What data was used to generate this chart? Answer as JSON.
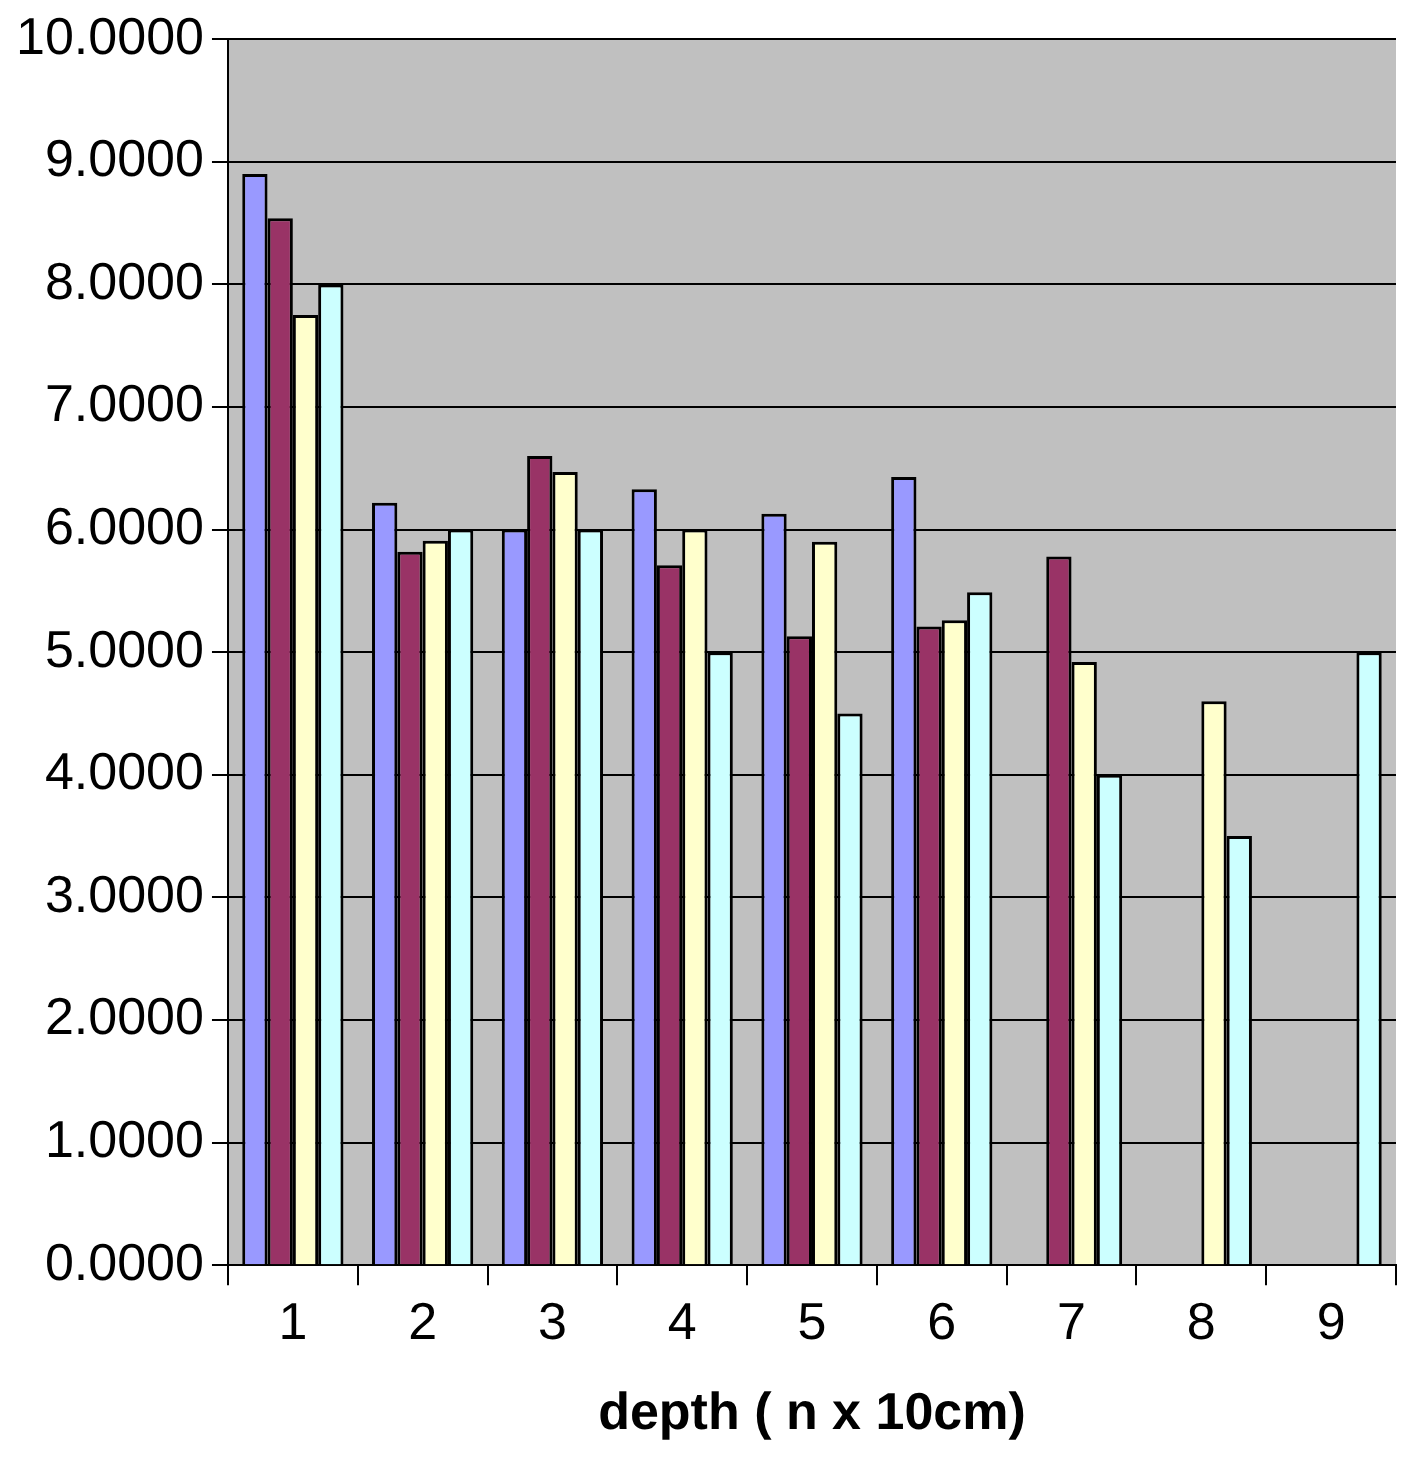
{
  "chart_data": {
    "type": "bar",
    "xlabel": "depth ( n x 10cm)",
    "categories": [
      "1",
      "2",
      "3",
      "4",
      "5",
      "6",
      "7",
      "8",
      "9"
    ],
    "series": [
      {
        "color": "#9999ff",
        "values": [
          8.9,
          6.22,
          6.0,
          6.33,
          6.13,
          6.43,
          null,
          null,
          null
        ]
      },
      {
        "color": "#993366",
        "values": [
          8.54,
          5.82,
          6.6,
          5.71,
          5.13,
          5.21,
          5.78,
          null,
          null
        ]
      },
      {
        "color": "#ffffcc",
        "values": [
          7.75,
          5.91,
          6.47,
          6.0,
          5.9,
          5.26,
          4.92,
          4.6,
          null
        ]
      },
      {
        "color": "#ccffff",
        "values": [
          8.0,
          6.0,
          6.0,
          5.0,
          4.5,
          5.49,
          4.0,
          3.5,
          5.0
        ]
      }
    ],
    "ylim": [
      0,
      10
    ],
    "yticks": [
      {
        "value": 0,
        "label": "0.0000"
      },
      {
        "value": 1,
        "label": "1.0000"
      },
      {
        "value": 2,
        "label": "2.0000"
      },
      {
        "value": 3,
        "label": "3.0000"
      },
      {
        "value": 4,
        "label": "4.0000"
      },
      {
        "value": 5,
        "label": "5.0000"
      },
      {
        "value": 6,
        "label": "6.0000"
      },
      {
        "value": 7,
        "label": "7.0000"
      },
      {
        "value": 8,
        "label": "8.0000"
      },
      {
        "value": 9,
        "label": "9.0000"
      },
      {
        "value": 10,
        "label": "10.0000"
      }
    ],
    "grid": "y",
    "legend": false
  }
}
